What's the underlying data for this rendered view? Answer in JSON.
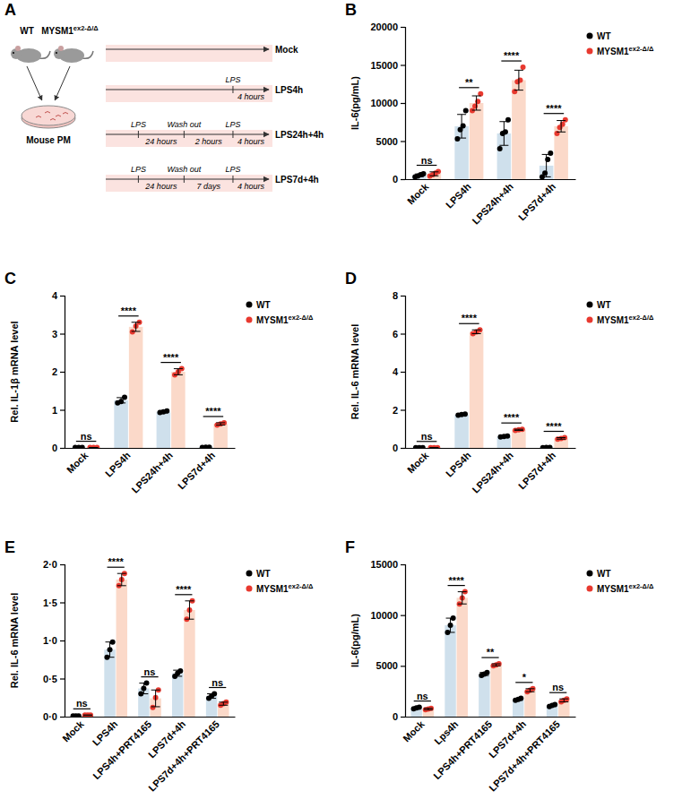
{
  "panel_a": {
    "panel": "A",
    "mice": [
      "WT",
      "MYSM1ex2-Δ/Δ"
    ],
    "cells": "Mouse PM",
    "timelines": [
      {
        "name": "Mock",
        "above": [],
        "below": []
      },
      {
        "name": "LPS4h",
        "above": [
          "LPS"
        ],
        "below": [
          "4 hours"
        ]
      },
      {
        "name": "LPS24h+4h",
        "above": [
          "LPS",
          "Wash out",
          "LPS"
        ],
        "below": [
          "24 hours",
          "2 hours",
          "4 hours"
        ]
      },
      {
        "name": "LPS7d+4h",
        "above": [
          "LPS",
          "Wash out",
          "LPS"
        ],
        "below": [
          "24 hours",
          "7 days",
          "4 hours"
        ]
      }
    ]
  },
  "chart_data": [
    {
      "panel": "B",
      "type": "bar",
      "ylabel": "IL-6(pg/mL)",
      "categories": [
        "Mock",
        "LPS4h",
        "LPS24h+4h",
        "LPS7d+4h"
      ],
      "ylim": [
        0,
        20000
      ],
      "yticks": [
        0,
        5000,
        10000,
        15000,
        20000
      ],
      "grid": false,
      "legend": "right",
      "series": [
        {
          "name": "WT",
          "color": "#000000",
          "marker": "circle",
          "values": [
            500,
            6950,
            6000,
            1775
          ],
          "errors": [
            180,
            1550,
            1560,
            1470
          ],
          "points": [
            [
              300,
              400,
              600,
              700
            ],
            [
              5300,
              6500,
              7000,
              9000
            ],
            [
              4000,
              6000,
              6200,
              7800
            ],
            [
              300,
              800,
              2600,
              3400
            ]
          ]
        },
        {
          "name": "MYSM1ex2-Δ/Δ",
          "color": "#e8392f",
          "marker": "circle",
          "values": [
            700,
            10000,
            13000,
            6950
          ],
          "errors": [
            260,
            940,
            1310,
            750
          ],
          "points": [
            [
              400,
              600,
              800,
              1000
            ],
            [
              9000,
              9600,
              10200,
              11200
            ],
            [
              11500,
              12800,
              13000,
              14700
            ],
            [
              6000,
              6800,
              7200,
              7800
            ]
          ]
        }
      ],
      "significance": [
        "ns",
        "**",
        "****",
        "****"
      ]
    },
    {
      "panel": "C",
      "type": "bar",
      "ylabel": "Rel. IL-1β mRNA level",
      "categories": [
        "Mock",
        "LPS4h",
        "LPS24h+4h",
        "LPS7d+4h"
      ],
      "ylim": [
        0,
        4
      ],
      "yticks": [
        0,
        1,
        2,
        3,
        4
      ],
      "grid": false,
      "legend": "right",
      "series": [
        {
          "name": "WT",
          "color": "#000000",
          "marker": "circle",
          "values": [
            0.01,
            1.25,
            0.95,
            0.02
          ],
          "errors": [
            0,
            0.07,
            0.03,
            0.005
          ],
          "points": [
            [
              0.01,
              0.01,
              0.01
            ],
            [
              1.18,
              1.22,
              1.33
            ],
            [
              0.93,
              0.95,
              0.97
            ],
            [
              0.01,
              0.02,
              0.02
            ]
          ]
        },
        {
          "name": "MYSM1ex2-Δ/Δ",
          "color": "#e8392f",
          "marker": "circle",
          "values": [
            0.01,
            3.18,
            2.0,
            0.63
          ],
          "errors": [
            0,
            0.12,
            0.08,
            0.03
          ],
          "points": [
            [
              0.01,
              0.01,
              0.01
            ],
            [
              3.05,
              3.2,
              3.3
            ],
            [
              1.92,
              2.0,
              2.08
            ],
            [
              0.6,
              0.63,
              0.66
            ]
          ]
        }
      ],
      "significance": [
        "ns",
        "****",
        "****",
        "****"
      ]
    },
    {
      "panel": "D",
      "type": "bar",
      "ylabel": "Rel. IL-6 mRNA level",
      "categories": [
        "Mock",
        "LPS4h",
        "LPS24h+4h",
        "LPS7d+4h"
      ],
      "ylim": [
        0,
        8
      ],
      "yticks": [
        0,
        2,
        4,
        6,
        8
      ],
      "grid": false,
      "legend": "right",
      "series": [
        {
          "name": "WT",
          "color": "#000000",
          "marker": "circle",
          "values": [
            0.01,
            1.75,
            0.6,
            0.02
          ],
          "errors": [
            0,
            0.03,
            0.02,
            0.005
          ],
          "points": [
            [
              0.01,
              0.01,
              0.01
            ],
            [
              1.72,
              1.75,
              1.78
            ],
            [
              0.58,
              0.6,
              0.62
            ],
            [
              0.01,
              0.02,
              0.02
            ]
          ]
        },
        {
          "name": "MYSM1ex2-Δ/Δ",
          "color": "#e8392f",
          "marker": "circle",
          "values": [
            0.01,
            6.1,
            0.95,
            0.5
          ],
          "errors": [
            0,
            0.1,
            0.03,
            0.04
          ],
          "points": [
            [
              0.01,
              0.01,
              0.01
            ],
            [
              6.0,
              6.1,
              6.2
            ],
            [
              0.92,
              0.95,
              0.98
            ],
            [
              0.46,
              0.5,
              0.54
            ]
          ]
        }
      ],
      "significance": [
        "ns",
        "****",
        "****",
        "****"
      ]
    },
    {
      "panel": "E",
      "type": "bar",
      "ylabel": "Rel. IL-6 mRNA level",
      "categories": [
        "Mock",
        "LPS4h",
        "LPS4h+PRT4165",
        "LPS7d+4h",
        "LPS7d+4h+PRT4165"
      ],
      "ylim": [
        0,
        2
      ],
      "yticks": [
        {
          "value": 0,
          "label": "0·0"
        },
        {
          "value": 0.5,
          "label": "0·5"
        },
        {
          "value": 1,
          "label": "1·0"
        },
        {
          "value": 1.5,
          "label": "1·5"
        },
        {
          "value": 2,
          "label": "2·0"
        }
      ],
      "grid": false,
      "legend": "right",
      "series": [
        {
          "name": "WT",
          "color": "#000000",
          "marker": "circle",
          "values": [
            0.01,
            0.88,
            0.37,
            0.57,
            0.27
          ],
          "errors": [
            0,
            0.1,
            0.07,
            0.04,
            0.03
          ],
          "points": [
            [
              0.01,
              0.01,
              0.01
            ],
            [
              0.78,
              0.88,
              0.98
            ],
            [
              0.3,
              0.37,
              0.44
            ],
            [
              0.53,
              0.57,
              0.6
            ],
            [
              0.24,
              0.27,
              0.3
            ]
          ]
        },
        {
          "name": "MYSM1ex2-Δ/Δ",
          "color": "#e8392f",
          "marker": "circle",
          "values": [
            0.02,
            1.8,
            0.24,
            1.4,
            0.17
          ],
          "errors": [
            0,
            0.08,
            0.11,
            0.12,
            0.02
          ],
          "points": [
            [
              0.02,
              0.02,
              0.02
            ],
            [
              1.72,
              1.8,
              1.88
            ],
            [
              0.12,
              0.25,
              0.35
            ],
            [
              1.28,
              1.4,
              1.52
            ],
            [
              0.15,
              0.17,
              0.19
            ]
          ]
        }
      ],
      "significance": [
        "ns",
        "****",
        "ns",
        "****",
        "ns"
      ]
    },
    {
      "panel": "F",
      "type": "bar",
      "ylabel": "IL-6(pg/mL)",
      "categories": [
        "Mock",
        "Lps4h",
        "LPS4h+PRT4165",
        "LPS7d+4h",
        "LPS7d+4h+PRT4165"
      ],
      "ylim": [
        0,
        15000
      ],
      "yticks": [
        0,
        5000,
        10000,
        15000
      ],
      "grid": false,
      "legend": "right",
      "series": [
        {
          "name": "WT",
          "color": "#000000",
          "marker": "circle",
          "values": [
            850,
            9000,
            4200,
            1700,
            1100
          ],
          "errors": [
            70,
            700,
            150,
            100,
            100
          ],
          "points": [
            [
              780,
              850,
              920
            ],
            [
              8300,
              9000,
              9700
            ],
            [
              4050,
              4200,
              4350
            ],
            [
              1600,
              1700,
              1800
            ],
            [
              1000,
              1100,
              1200
            ]
          ]
        },
        {
          "name": "MYSM1ex2-Δ/Δ",
          "color": "#e8392f",
          "marker": "circle",
          "values": [
            750,
            11700,
            5100,
            2600,
            1600
          ],
          "errors": [
            70,
            600,
            100,
            150,
            150
          ],
          "points": [
            [
              680,
              750,
              820
            ],
            [
              11100,
              11700,
              12300
            ],
            [
              5000,
              5100,
              5200
            ],
            [
              2450,
              2600,
              2750
            ],
            [
              1450,
              1600,
              1750
            ]
          ]
        }
      ],
      "significance": [
        "ns",
        "****",
        "**",
        "*",
        "ns"
      ]
    }
  ]
}
